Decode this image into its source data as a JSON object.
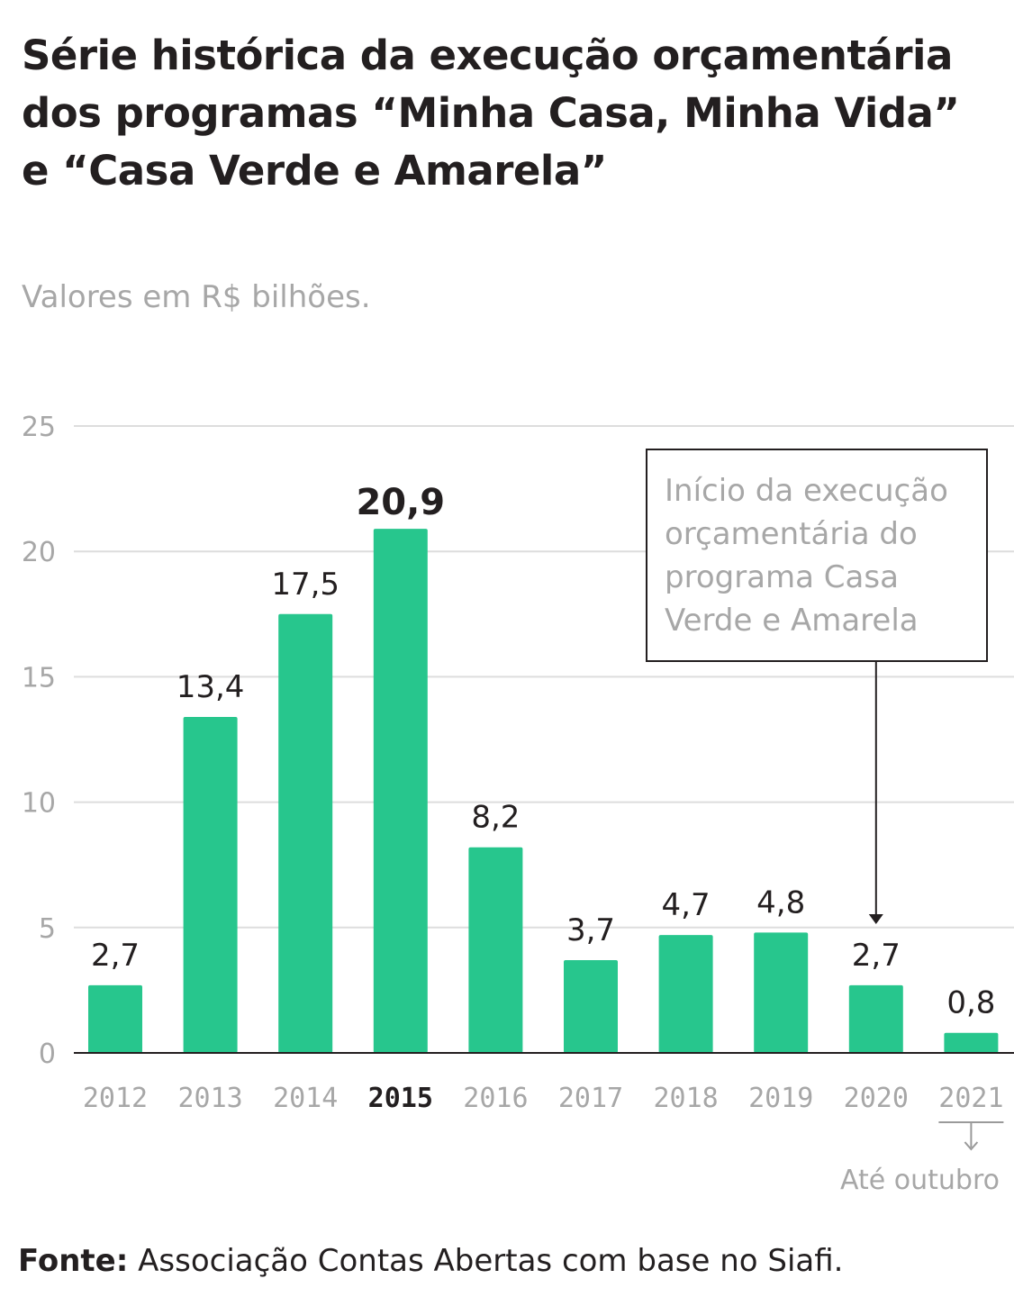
{
  "header": {
    "title": "Série histórica da execução orçamentária dos programas “Minha Casa, Minha Vida” e “Casa Verde e Amarela”",
    "subtitle": "Valores em R$ bilhões."
  },
  "chart_data": {
    "type": "bar",
    "title": "Série histórica da execução orçamentária dos programas “Minha Casa, Minha Vida” e “Casa Verde e Amarela”",
    "subtitle": "Valores em R$ bilhões.",
    "categories": [
      "2012",
      "2013",
      "2014",
      "2015",
      "2016",
      "2017",
      "2018",
      "2019",
      "2020",
      "2021"
    ],
    "values": [
      2.7,
      13.4,
      17.5,
      20.9,
      8.2,
      3.7,
      4.7,
      4.8,
      2.7,
      0.8
    ],
    "value_labels": [
      "2,7",
      "13,4",
      "17,5",
      "20,9",
      "8,2",
      "3,7",
      "4,7",
      "4,8",
      "2,7",
      "0,8"
    ],
    "highlight_category": "2015",
    "ylim": [
      0,
      25
    ],
    "yticks": [
      0,
      5,
      10,
      15,
      20,
      25
    ],
    "grid": true,
    "bar_color": "#27c68d",
    "annotations": [
      {
        "target": "2020",
        "text": [
          "Início da execução",
          "orçamentária do",
          "programa Casa",
          "Verde e Amarela"
        ]
      },
      {
        "target": "2021",
        "text": [
          "Até outubro"
        ]
      }
    ]
  },
  "source": {
    "label": "Fonte:",
    "text": " Associação Contas Abertas com base no Siafi."
  },
  "colors": {
    "bar": "#27c68d",
    "grid": "#dddddd",
    "axis_text": "#a7a7a7",
    "label_text": "#231f20"
  }
}
